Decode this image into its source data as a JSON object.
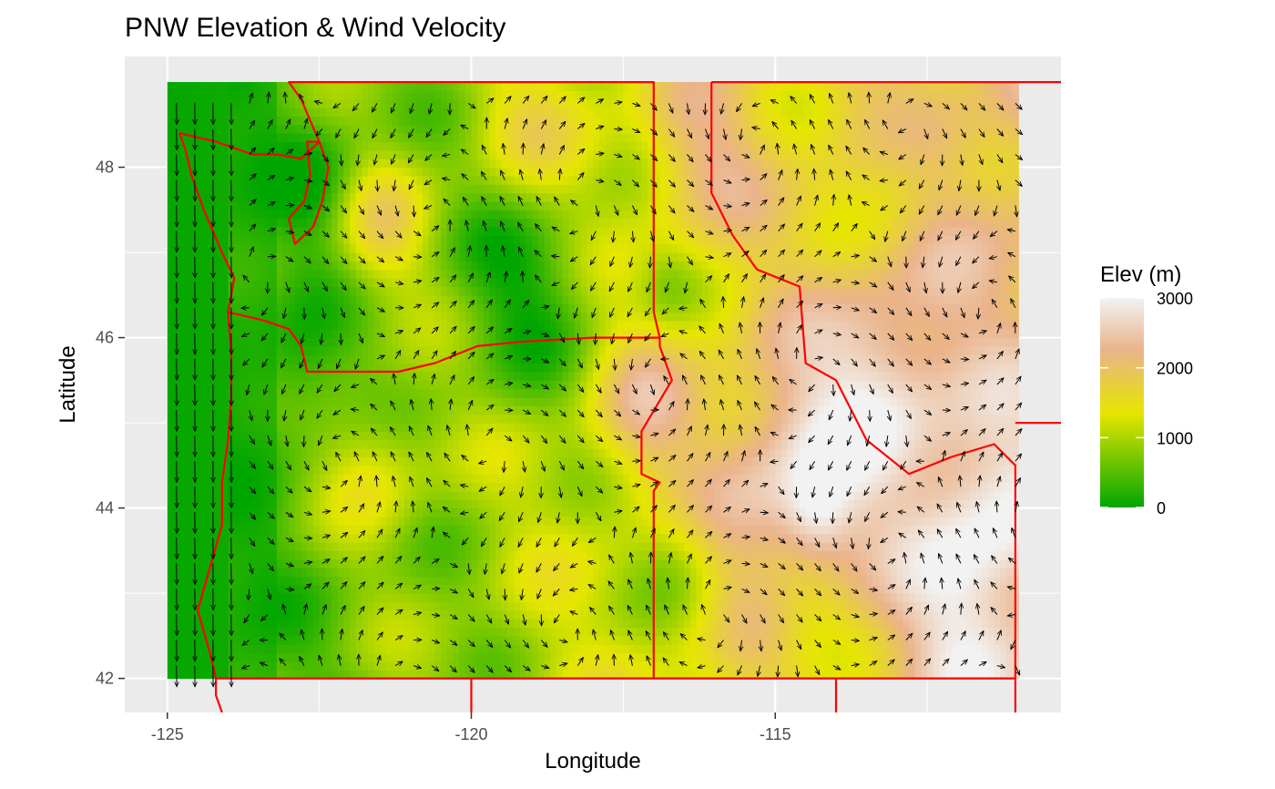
{
  "chart_data": {
    "type": "heatmap",
    "title": "PNW Elevation & Wind Velocity",
    "xlabel": "Longitude",
    "ylabel": "Latitude",
    "xlim": [
      -125.7,
      -110.3
    ],
    "ylim": [
      41.6,
      49.3
    ],
    "data_extent": {
      "lon": [
        -125.0,
        -111.0
      ],
      "lat": [
        42.0,
        49.0
      ]
    },
    "x_ticks": [
      -125,
      -120,
      -115
    ],
    "x_tick_labels": [
      "-125",
      "-120",
      "-115"
    ],
    "x_minor": [
      -122.5,
      -117.5,
      -112.5
    ],
    "y_ticks": [
      42,
      44,
      46,
      48
    ],
    "y_tick_labels": [
      "42",
      "44",
      "46",
      "48"
    ],
    "y_minor": [
      43,
      45,
      47
    ],
    "grid": true,
    "fill": {
      "variable": "Elev (m)",
      "range": [
        0,
        3000
      ],
      "breaks": [
        0,
        1000,
        2000,
        3000
      ],
      "break_labels": [
        "0",
        "1000",
        "2000",
        "3000"
      ],
      "colors": [
        "#00a600",
        "#e6e600",
        "#eab38a",
        "#f2f2f2"
      ],
      "color_stops": [
        0,
        0.45,
        0.75,
        1
      ]
    },
    "legend_title": "Elev (m)",
    "legend_position": "right",
    "overlay": {
      "arrows": "wind velocity vectors",
      "arrow_color": "#000000",
      "border_color": "#ff0000",
      "borders": [
        {
          "name": "Washington",
          "points": [
            [
              -124.8,
              48.4
            ],
            [
              -124.7,
              48.2
            ],
            [
              -124.6,
              47.9
            ],
            [
              -124.4,
              47.5
            ],
            [
              -124.1,
              47.0
            ],
            [
              -123.9,
              46.7
            ],
            [
              -124.0,
              46.3
            ],
            [
              -123.4,
              46.2
            ],
            [
              -123.0,
              46.1
            ],
            [
              -122.8,
              45.9
            ],
            [
              -122.7,
              45.6
            ],
            [
              -122.0,
              45.6
            ],
            [
              -121.2,
              45.6
            ],
            [
              -120.6,
              45.7
            ],
            [
              -119.9,
              45.9
            ],
            [
              -119.2,
              45.95
            ],
            [
              -118.0,
              46.0
            ],
            [
              -116.9,
              46.0
            ],
            [
              -117.0,
              46.3
            ],
            [
              -117.0,
              47.5
            ],
            [
              -117.0,
              49.0
            ],
            [
              -120.0,
              49.0
            ],
            [
              -123.0,
              49.0
            ],
            [
              -122.8,
              48.8
            ],
            [
              -122.5,
              48.3
            ],
            [
              -122.8,
              48.1
            ],
            [
              -123.2,
              48.15
            ],
            [
              -123.6,
              48.15
            ],
            [
              -124.2,
              48.3
            ],
            [
              -124.8,
              48.4
            ]
          ]
        },
        {
          "name": "Oregon",
          "points": [
            [
              -124.0,
              46.3
            ],
            [
              -123.95,
              45.8
            ],
            [
              -123.95,
              45.3
            ],
            [
              -124.0,
              44.8
            ],
            [
              -124.1,
              44.3
            ],
            [
              -124.1,
              43.8
            ],
            [
              -124.3,
              43.3
            ],
            [
              -124.5,
              42.8
            ],
            [
              -124.3,
              42.3
            ],
            [
              -124.2,
              42.0
            ],
            [
              -122.0,
              42.0
            ],
            [
              -120.0,
              42.0
            ],
            [
              -117.0,
              42.0
            ],
            [
              -117.0,
              43.5
            ],
            [
              -117.0,
              44.2
            ],
            [
              -116.9,
              44.3
            ],
            [
              -117.2,
              44.4
            ],
            [
              -117.2,
              44.9
            ],
            [
              -116.7,
              45.5
            ],
            [
              -116.9,
              45.9
            ],
            [
              -116.9,
              46.0
            ]
          ]
        },
        {
          "name": "Idaho",
          "points": [
            [
              -117.0,
              42.0
            ],
            [
              -114.0,
              42.0
            ],
            [
              -111.05,
              42.0
            ],
            [
              -111.05,
              44.5
            ],
            [
              -111.4,
              44.75
            ],
            [
              -112.1,
              44.6
            ],
            [
              -112.8,
              44.4
            ],
            [
              -113.5,
              44.8
            ],
            [
              -114.0,
              45.5
            ],
            [
              -114.5,
              45.7
            ],
            [
              -114.6,
              46.6
            ],
            [
              -115.3,
              46.8
            ],
            [
              -115.7,
              47.2
            ],
            [
              -116.05,
              47.7
            ],
            [
              -116.05,
              49.0
            ]
          ]
        },
        {
          "name": "Puget Sound",
          "points": [
            [
              -122.5,
              48.3
            ],
            [
              -122.35,
              48.0
            ],
            [
              -122.45,
              47.6
            ],
            [
              -122.6,
              47.3
            ],
            [
              -122.9,
              47.1
            ],
            [
              -123.0,
              47.4
            ],
            [
              -122.75,
              47.6
            ],
            [
              -122.65,
              47.9
            ],
            [
              -122.7,
              48.3
            ],
            [
              -122.5,
              48.3
            ]
          ]
        },
        {
          "name": "Montana-Canada",
          "points": [
            [
              -116.05,
              49.0
            ],
            [
              -110.3,
              49.0
            ]
          ]
        },
        {
          "name": "Wyoming",
          "points": [
            [
              -111.05,
              45.0
            ],
            [
              -110.3,
              45.0
            ]
          ]
        },
        {
          "name": "California-Nevada",
          "points": [
            [
              -120.0,
              42.0
            ],
            [
              -120.0,
              41.6
            ]
          ]
        },
        {
          "name": "Nevada-Utah",
          "points": [
            [
              -114.0,
              42.0
            ],
            [
              -114.0,
              41.6
            ]
          ]
        },
        {
          "name": "Utah-Wyoming",
          "points": [
            [
              -111.05,
              42.0
            ],
            [
              -111.05,
              41.6
            ]
          ]
        },
        {
          "name": "California coast",
          "points": [
            [
              -124.2,
              42.0
            ],
            [
              -124.2,
              41.8
            ],
            [
              -124.1,
              41.6
            ]
          ]
        }
      ]
    }
  }
}
